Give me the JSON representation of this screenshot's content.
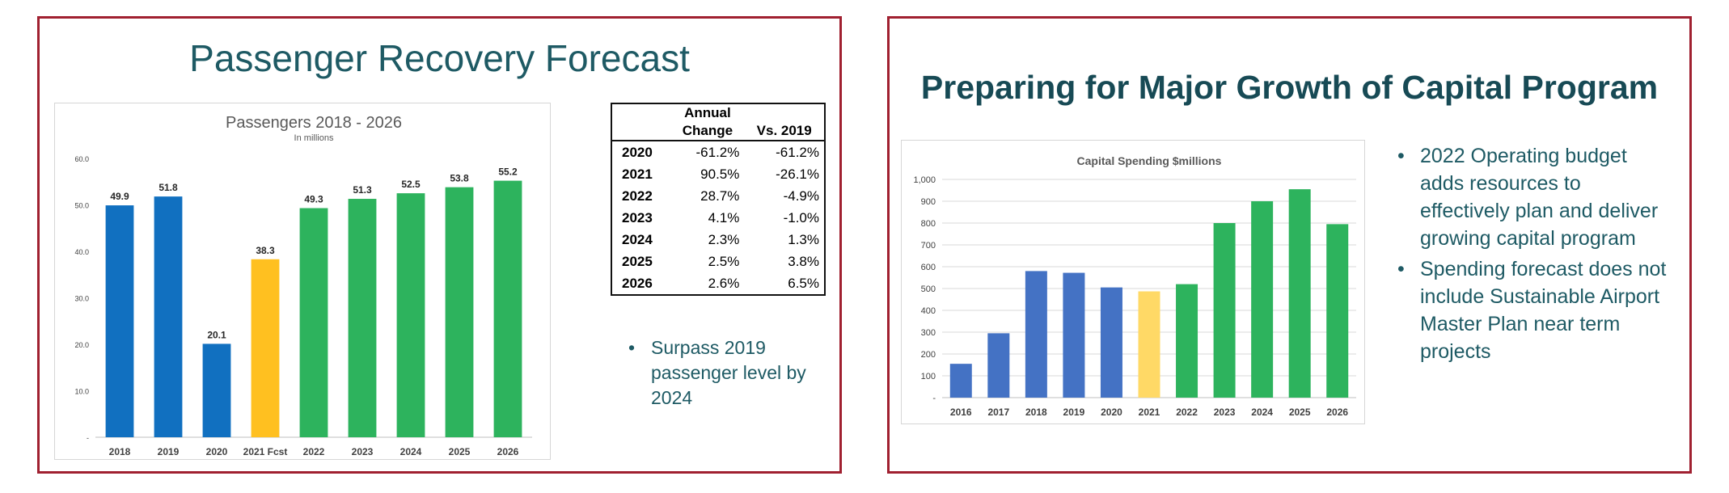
{
  "slide1": {
    "title": "Passenger Recovery Forecast",
    "table": {
      "header_top": "Annual",
      "header_change": "Change",
      "header_vs": "Vs. 2019",
      "rows": [
        {
          "year": "2020",
          "change": "-61.2%",
          "vs": "-61.2%"
        },
        {
          "year": "2021",
          "change": "90.5%",
          "vs": "-26.1%"
        },
        {
          "year": "2022",
          "change": "28.7%",
          "vs": "-4.9%"
        },
        {
          "year": "2023",
          "change": "4.1%",
          "vs": "-1.0%"
        },
        {
          "year": "2024",
          "change": "2.3%",
          "vs": "1.3%"
        },
        {
          "year": "2025",
          "change": "2.5%",
          "vs": "3.8%"
        },
        {
          "year": "2026",
          "change": "2.6%",
          "vs": "6.5%"
        }
      ]
    },
    "bullet": "Surpass 2019 passenger level by 2024"
  },
  "slide2": {
    "title": "Preparing for Major Growth of Capital Program",
    "bullets": [
      "2022 Operating budget adds resources to effectively plan and deliver growing capital program",
      "Spending forecast does not include Sustainable Airport Master Plan near term projects"
    ]
  },
  "colors": {
    "blue": "#1170c0",
    "blue2": "#4472c4",
    "gold": "#ffc020",
    "gold2": "#ffd966",
    "green": "#2db35d",
    "border": "#a02030",
    "teal": "#1e5a64"
  },
  "chart_data": [
    {
      "type": "bar",
      "title": "Passengers 2018 - 2026",
      "subtitle": "In millions",
      "categories": [
        "2018",
        "2019",
        "2020",
        "2021 Fcst",
        "2022",
        "2023",
        "2024",
        "2025",
        "2026"
      ],
      "values": [
        49.9,
        51.8,
        20.1,
        38.3,
        49.3,
        51.3,
        52.5,
        53.8,
        55.2
      ],
      "data_labels": [
        "49.9",
        "51.8",
        "20.1",
        "38.3",
        "49.3",
        "51.3",
        "52.5",
        "53.8",
        "55.2"
      ],
      "bar_colors": [
        "#1170c0",
        "#1170c0",
        "#1170c0",
        "#ffc020",
        "#2db35d",
        "#2db35d",
        "#2db35d",
        "#2db35d",
        "#2db35d"
      ],
      "y_ticks": [
        "-",
        "10.0",
        "20.0",
        "30.0",
        "40.0",
        "50.0",
        "60.0"
      ],
      "ylim": [
        0,
        60
      ],
      "grid": false
    },
    {
      "type": "bar",
      "title": "Capital Spending $millions",
      "categories": [
        "2016",
        "2017",
        "2018",
        "2019",
        "2020",
        "2021",
        "2022",
        "2023",
        "2024",
        "2025",
        "2026"
      ],
      "values": [
        155,
        295,
        580,
        572,
        505,
        487,
        520,
        800,
        900,
        955,
        795
      ],
      "bar_colors": [
        "#4472c4",
        "#4472c4",
        "#4472c4",
        "#4472c4",
        "#4472c4",
        "#ffd966",
        "#2db35d",
        "#2db35d",
        "#2db35d",
        "#2db35d",
        "#2db35d"
      ],
      "y_ticks": [
        "-",
        "100",
        "200",
        "300",
        "400",
        "500",
        "600",
        "700",
        "800",
        "900",
        "1,000"
      ],
      "ylim": [
        0,
        1000
      ],
      "grid": true
    }
  ]
}
